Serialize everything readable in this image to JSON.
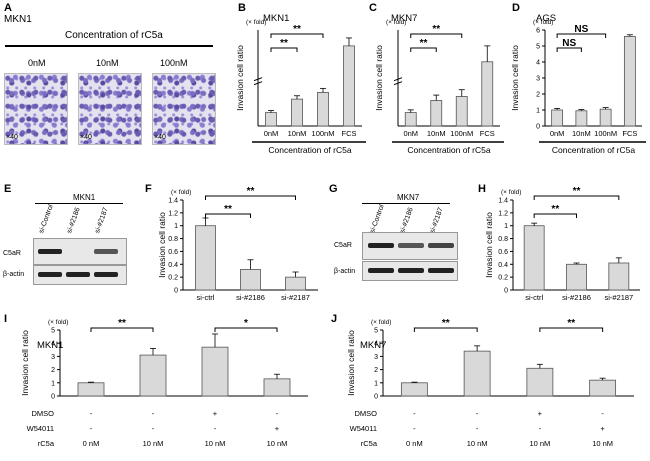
{
  "panel_letters": [
    "A",
    "B",
    "C",
    "D",
    "E",
    "F",
    "G",
    "H",
    "I",
    "J"
  ],
  "panelA": {
    "cell_line": "MKN1",
    "header": "Concentration of rC5a",
    "conditions": [
      "0nM",
      "10nM",
      "100nM"
    ],
    "magnification": "×40"
  },
  "panelE": {
    "cell_line": "MKN1",
    "lanes": [
      "si-Control",
      "si-#2186",
      "si-#2187"
    ],
    "rows": [
      "C5aR",
      "β-actin"
    ]
  },
  "panelG": {
    "cell_line": "MKN7",
    "lanes": [
      "si-Control",
      "si-#2186",
      "si-#2187"
    ],
    "rows": [
      "C5aR",
      "β-actin"
    ]
  },
  "chart_data": [
    {
      "id": "B",
      "type": "bar",
      "title": "MKN1",
      "ylabel": "Invasion cell ratio",
      "unit": "(× fold)",
      "categories": [
        "0nM",
        "10nM",
        "100nM",
        "FCS"
      ],
      "values": [
        1.0,
        2.0,
        2.5,
        8.0
      ],
      "errors": [
        0.15,
        0.25,
        0.3,
        0.5
      ],
      "axis_break": true,
      "xlabel": "Concentration of rC5a",
      "significance": [
        {
          "from": "0nM",
          "to": "10nM",
          "label": "**"
        },
        {
          "from": "0nM",
          "to": "100nM",
          "label": "**"
        }
      ]
    },
    {
      "id": "C",
      "type": "bar",
      "title": "MKN7",
      "ylabel": "Invasion cell ratio",
      "unit": "(× fold)",
      "categories": [
        "0nM",
        "10nM",
        "100nM",
        "FCS"
      ],
      "values": [
        1.0,
        1.9,
        2.2,
        7.0
      ],
      "errors": [
        0.2,
        0.4,
        0.5,
        1.0
      ],
      "axis_break": true,
      "xlabel": "Concentration of rC5a",
      "significance": [
        {
          "from": "0nM",
          "to": "10nM",
          "label": "**"
        },
        {
          "from": "0nM",
          "to": "100nM",
          "label": "**"
        }
      ]
    },
    {
      "id": "D",
      "type": "bar",
      "title": "AGS",
      "ylabel": "Invasion cell ratio",
      "unit": "(× fold)",
      "categories": [
        "0nM",
        "10nM",
        "100nM",
        "FCS"
      ],
      "values": [
        1.0,
        0.95,
        1.05,
        5.6
      ],
      "errors": [
        0.1,
        0.08,
        0.1,
        0.1
      ],
      "ylim": [
        0,
        6
      ],
      "yticks": [
        0,
        1,
        2,
        3,
        4,
        5,
        6
      ],
      "xlabel": "Concentration of rC5a",
      "significance": [
        {
          "from": "0nM",
          "to": "10nM",
          "label": "NS"
        },
        {
          "from": "0nM",
          "to": "100nM",
          "label": "NS"
        }
      ]
    },
    {
      "id": "F",
      "type": "bar",
      "ylabel": "Invasion cell ratio",
      "unit": "(× fold)",
      "categories": [
        "si-ctrl",
        "si-#2186",
        "si-#2187"
      ],
      "values": [
        1.0,
        0.32,
        0.2
      ],
      "errors": [
        0.12,
        0.15,
        0.08
      ],
      "ylim": [
        0,
        1.4
      ],
      "yticks": [
        0,
        0.2,
        0.4,
        0.6,
        0.8,
        1,
        1.2,
        1.4
      ],
      "significance": [
        {
          "from": "si-ctrl",
          "to": "si-#2186",
          "label": "**"
        },
        {
          "from": "si-ctrl",
          "to": "si-#2187",
          "label": "**"
        }
      ]
    },
    {
      "id": "H",
      "type": "bar",
      "ylabel": "Invasion cell ratio",
      "unit": "(× fold)",
      "categories": [
        "si-ctrl",
        "si-#2186",
        "si-#2187"
      ],
      "values": [
        1.0,
        0.4,
        0.42
      ],
      "errors": [
        0.04,
        0.02,
        0.08
      ],
      "ylim": [
        0,
        1.4
      ],
      "yticks": [
        0,
        0.2,
        0.4,
        0.6,
        0.8,
        1,
        1.2,
        1.4
      ],
      "significance": [
        {
          "from": "si-ctrl",
          "to": "si-#2186",
          "label": "**"
        },
        {
          "from": "si-ctrl",
          "to": "si-#2187",
          "label": "**"
        }
      ]
    },
    {
      "id": "I",
      "type": "bar",
      "title": "MKN1",
      "ylabel": "Invasion cell ratio",
      "unit": "(× fold)",
      "values": [
        1.0,
        3.1,
        3.7,
        1.3
      ],
      "errors": [
        0.05,
        0.5,
        1.0,
        0.35
      ],
      "ylim": [
        0,
        5
      ],
      "yticks": [
        0,
        1,
        2,
        3,
        4,
        5
      ],
      "table_rows": [
        {
          "label": "DMSO",
          "cells": [
            "-",
            "-",
            "+",
            "-"
          ]
        },
        {
          "label": "W54011",
          "cells": [
            "-",
            "-",
            "-",
            "+"
          ]
        },
        {
          "label": "rC5a",
          "cells": [
            "0 nM",
            "10 nM",
            "10 nM",
            "10 nM"
          ]
        }
      ],
      "significance": [
        {
          "from": 0,
          "to": 1,
          "label": "**"
        },
        {
          "from": 2,
          "to": 3,
          "label": "*"
        }
      ]
    },
    {
      "id": "J",
      "type": "bar",
      "title": "MKN7",
      "ylabel": "Invasion cell ratio",
      "unit": "(× fold)",
      "values": [
        1.0,
        3.4,
        2.1,
        1.2
      ],
      "errors": [
        0.05,
        0.4,
        0.3,
        0.15
      ],
      "ylim": [
        0,
        5
      ],
      "yticks": [
        0,
        1,
        2,
        3,
        4,
        5
      ],
      "table_rows": [
        {
          "label": "DMSO",
          "cells": [
            "-",
            "-",
            "+",
            "-"
          ]
        },
        {
          "label": "W54011",
          "cells": [
            "-",
            "-",
            "-",
            "+"
          ]
        },
        {
          "label": "rC5a",
          "cells": [
            "0 nM",
            "10 nM",
            "10 nM",
            "10 nM"
          ]
        }
      ],
      "significance": [
        {
          "from": 0,
          "to": 1,
          "label": "**"
        },
        {
          "from": 2,
          "to": 3,
          "label": "**"
        }
      ]
    }
  ]
}
